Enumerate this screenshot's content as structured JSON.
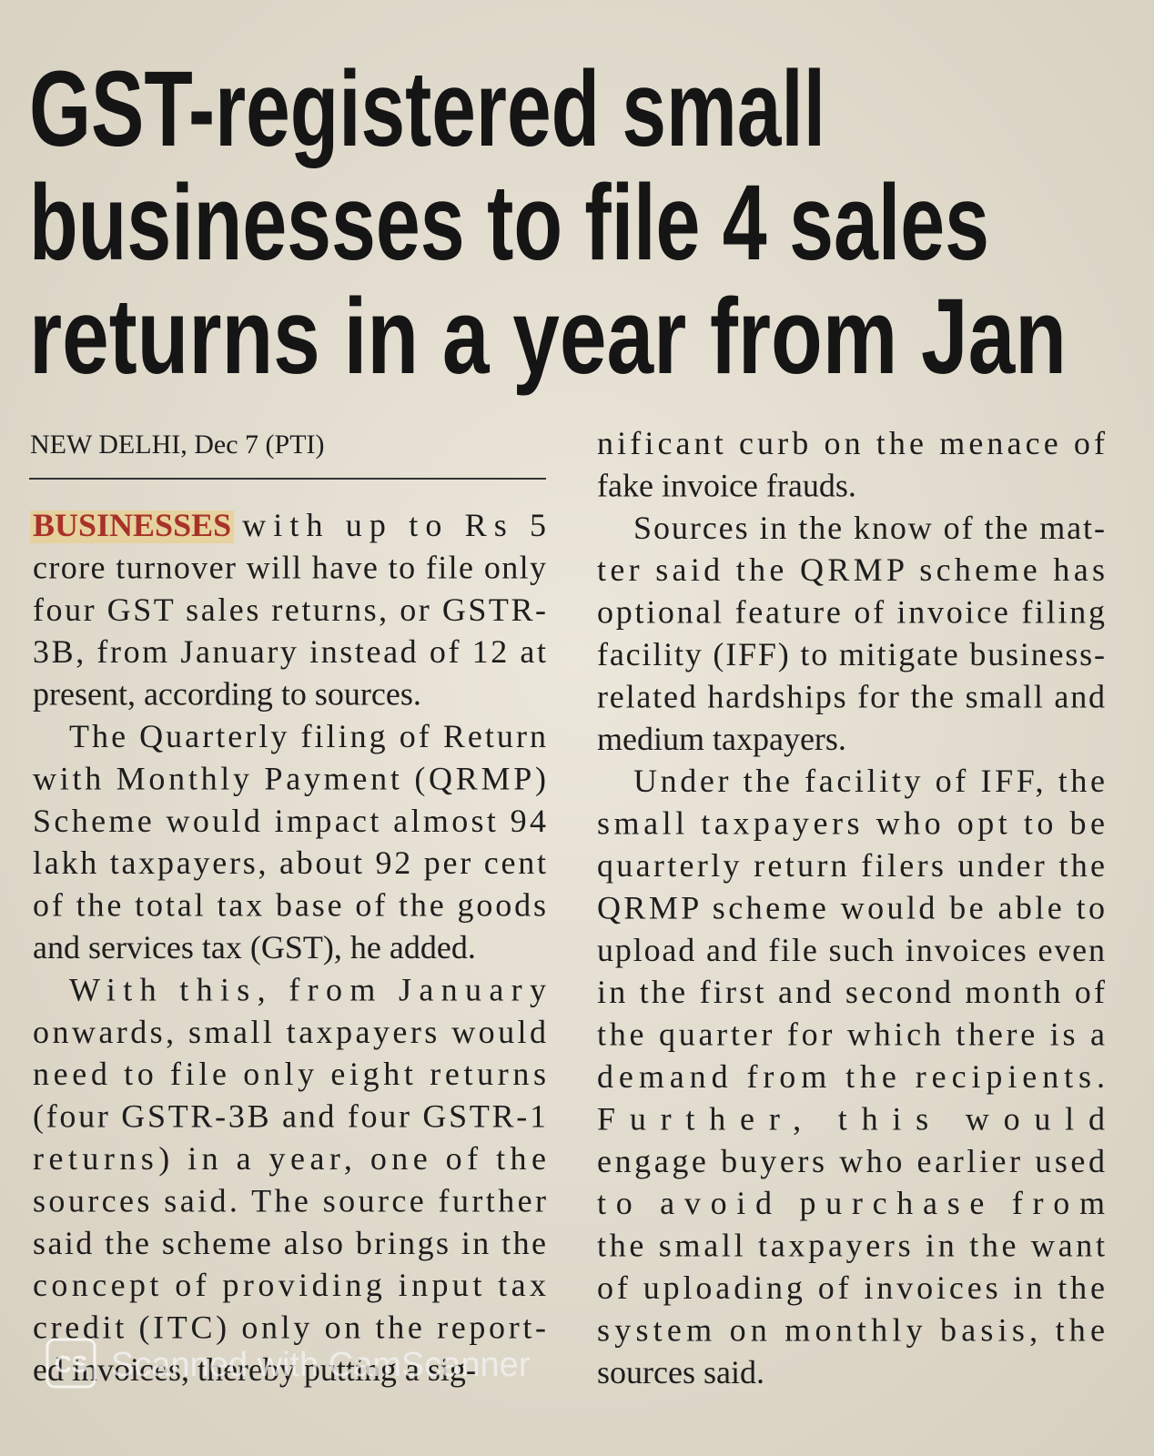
{
  "headline": {
    "lines": [
      "GST-registered small",
      "businesses to file 4 sales",
      "returns in a year from Jan"
    ]
  },
  "dateline": "NEW DELHI, Dec 7 (PTI)",
  "columns": [
    {
      "paragraphs": [
        {
          "lead": "BUSINESSES",
          "lines": [
            "with up to Rs 5",
            "crore turnover will have to file only",
            "four GST sales returns, or GSTR-",
            "3B, from January instead of 12 at",
            "present, according to sources."
          ]
        },
        {
          "lines": [
            "The Quarterly filing of Return",
            "with Monthly Payment (QRMP)",
            "Scheme would impact almost 94",
            "lakh taxpayers, about 92 per cent",
            "of the total tax base of the goods",
            "and services tax (GST), he added."
          ]
        },
        {
          "lines": [
            "With this, from January",
            "onwards, small taxpayers would",
            "need to file only eight returns",
            "(four GSTR-3B and four GSTR-1",
            "returns) in a year, one of the",
            "sources said. The source further",
            "said the scheme also brings in the",
            "concept of providing input tax",
            "credit (ITC) only on the report-",
            "ed invoices, thereby putting a sig-"
          ]
        }
      ]
    },
    {
      "paragraphs": [
        {
          "lines": [
            "nificant curb on the menace of",
            "fake invoice frauds."
          ]
        },
        {
          "lines": [
            "Sources in the know of the mat-",
            "ter said the QRMP scheme has",
            "optional feature of invoice filing",
            "facility (IFF) to mitigate business-",
            "related hardships for the small and",
            "medium taxpayers."
          ]
        },
        {
          "lines": [
            "Under the facility of IFF, the",
            "small taxpayers who opt to be",
            "quarterly return filers under the",
            "QRMP scheme would be able to",
            "upload and file such invoices even",
            "in the first and second month of",
            "the quarter for which there is a",
            "demand from the recipients.",
            "Further, this would",
            "engage buyers who earlier used",
            "to avoid purchase from",
            "the small taxpayers in the want",
            "of uploading of invoices in the",
            "system on monthly basis, the",
            "sources said."
          ]
        }
      ]
    }
  ],
  "watermark": {
    "logo": "CS",
    "text": "Scanned with CamScanner"
  }
}
